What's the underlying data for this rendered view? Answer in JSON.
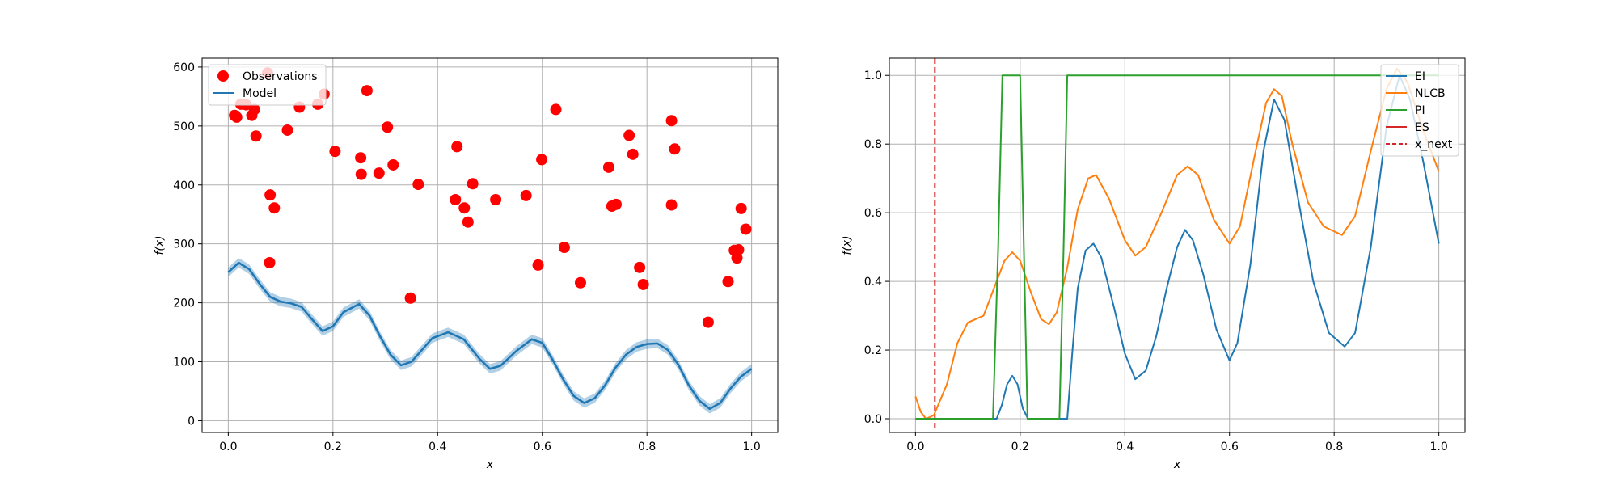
{
  "chart_data": [
    {
      "type": "scatter",
      "xlabel": "x",
      "ylabel": "f(x)",
      "xlim": [
        -0.05,
        1.05
      ],
      "ylim": [
        -20,
        615
      ],
      "xticks": [
        "0.0",
        "0.2",
        "0.4",
        "0.6",
        "0.8",
        "1.0"
      ],
      "yticks": [
        "0",
        "100",
        "200",
        "300",
        "400",
        "500",
        "600"
      ],
      "grid": true,
      "legend": {
        "position": "top-left",
        "entries": [
          "Observations",
          "Model"
        ]
      },
      "series": [
        {
          "name": "Observations",
          "kind": "scatter",
          "color": "#ff0000",
          "points": [
            [
              0.012,
              518
            ],
            [
              0.016,
              515
            ],
            [
              0.024,
              537
            ],
            [
              0.034,
              536
            ],
            [
              0.045,
              518
            ],
            [
              0.05,
              528
            ],
            [
              0.053,
              483
            ],
            [
              0.075,
              590
            ],
            [
              0.08,
              383
            ],
            [
              0.079,
              268
            ],
            [
              0.088,
              361
            ],
            [
              0.113,
              493
            ],
            [
              0.136,
              532
            ],
            [
              0.171,
              537
            ],
            [
              0.183,
              554
            ],
            [
              0.204,
              457
            ],
            [
              0.253,
              446
            ],
            [
              0.254,
              418
            ],
            [
              0.265,
              560
            ],
            [
              0.288,
              420
            ],
            [
              0.304,
              498
            ],
            [
              0.315,
              434
            ],
            [
              0.348,
              208
            ],
            [
              0.363,
              401
            ],
            [
              0.434,
              375
            ],
            [
              0.437,
              465
            ],
            [
              0.451,
              361
            ],
            [
              0.458,
              337
            ],
            [
              0.467,
              402
            ],
            [
              0.511,
              375
            ],
            [
              0.569,
              382
            ],
            [
              0.592,
              264
            ],
            [
              0.599,
              443
            ],
            [
              0.626,
              528
            ],
            [
              0.642,
              294
            ],
            [
              0.673,
              234
            ],
            [
              0.727,
              430
            ],
            [
              0.733,
              364
            ],
            [
              0.741,
              367
            ],
            [
              0.766,
              484
            ],
            [
              0.773,
              452
            ],
            [
              0.786,
              260
            ],
            [
              0.793,
              231
            ],
            [
              0.847,
              509
            ],
            [
              0.847,
              366
            ],
            [
              0.853,
              461
            ],
            [
              0.917,
              167
            ],
            [
              0.955,
              236
            ],
            [
              0.967,
              289
            ],
            [
              0.972,
              276
            ],
            [
              0.975,
              290
            ],
            [
              0.98,
              360
            ],
            [
              0.989,
              325
            ]
          ]
        },
        {
          "name": "Model",
          "kind": "line",
          "color": "#1f77b4",
          "band_halfwidth": 8,
          "points": [
            [
              0.0,
              252
            ],
            [
              0.02,
              268
            ],
            [
              0.04,
              257
            ],
            [
              0.06,
              232
            ],
            [
              0.08,
              210
            ],
            [
              0.1,
              202
            ],
            [
              0.12,
              199
            ],
            [
              0.14,
              193
            ],
            [
              0.16,
              172
            ],
            [
              0.18,
              152
            ],
            [
              0.2,
              160
            ],
            [
              0.22,
              184
            ],
            [
              0.25,
              198
            ],
            [
              0.27,
              178
            ],
            [
              0.29,
              143
            ],
            [
              0.31,
              112
            ],
            [
              0.33,
              94
            ],
            [
              0.35,
              100
            ],
            [
              0.37,
              120
            ],
            [
              0.39,
              140
            ],
            [
              0.42,
              150
            ],
            [
              0.45,
              138
            ],
            [
              0.48,
              105
            ],
            [
              0.5,
              88
            ],
            [
              0.52,
              93
            ],
            [
              0.55,
              118
            ],
            [
              0.58,
              138
            ],
            [
              0.6,
              132
            ],
            [
              0.62,
              103
            ],
            [
              0.64,
              70
            ],
            [
              0.66,
              42
            ],
            [
              0.68,
              30
            ],
            [
              0.7,
              38
            ],
            [
              0.72,
              60
            ],
            [
              0.74,
              90
            ],
            [
              0.76,
              112
            ],
            [
              0.78,
              125
            ],
            [
              0.8,
              130
            ],
            [
              0.82,
              131
            ],
            [
              0.84,
              120
            ],
            [
              0.86,
              95
            ],
            [
              0.88,
              60
            ],
            [
              0.9,
              34
            ],
            [
              0.92,
              20
            ],
            [
              0.94,
              30
            ],
            [
              0.96,
              55
            ],
            [
              0.98,
              75
            ],
            [
              1.0,
              88
            ]
          ]
        }
      ]
    },
    {
      "type": "line",
      "xlabel": "x",
      "ylabel": "f(x)",
      "xlim": [
        -0.05,
        1.05
      ],
      "ylim": [
        -0.04,
        1.05
      ],
      "xticks": [
        "0.0",
        "0.2",
        "0.4",
        "0.6",
        "0.8",
        "1.0"
      ],
      "yticks": [
        "0.0",
        "0.2",
        "0.4",
        "0.6",
        "0.8",
        "1.0"
      ],
      "grid": true,
      "legend": {
        "position": "top-right",
        "entries": [
          "EI",
          "NLCB",
          "PI",
          "ES",
          "x_next"
        ]
      },
      "vline": {
        "x": 0.037,
        "color": "#d62728",
        "name": "x_next"
      },
      "series": [
        {
          "name": "EI",
          "color": "#1f77b4",
          "points": [
            [
              0.0,
              0.0
            ],
            [
              0.155,
              0.0
            ],
            [
              0.165,
              0.04
            ],
            [
              0.175,
              0.1
            ],
            [
              0.185,
              0.125
            ],
            [
              0.195,
              0.1
            ],
            [
              0.205,
              0.03
            ],
            [
              0.215,
              0.0
            ],
            [
              0.29,
              0.0
            ],
            [
              0.3,
              0.2
            ],
            [
              0.31,
              0.38
            ],
            [
              0.325,
              0.49
            ],
            [
              0.34,
              0.51
            ],
            [
              0.355,
              0.47
            ],
            [
              0.38,
              0.32
            ],
            [
              0.4,
              0.19
            ],
            [
              0.42,
              0.115
            ],
            [
              0.44,
              0.14
            ],
            [
              0.46,
              0.24
            ],
            [
              0.48,
              0.38
            ],
            [
              0.5,
              0.5
            ],
            [
              0.515,
              0.55
            ],
            [
              0.53,
              0.52
            ],
            [
              0.55,
              0.42
            ],
            [
              0.575,
              0.26
            ],
            [
              0.6,
              0.17
            ],
            [
              0.615,
              0.22
            ],
            [
              0.64,
              0.45
            ],
            [
              0.665,
              0.78
            ],
            [
              0.685,
              0.93
            ],
            [
              0.705,
              0.87
            ],
            [
              0.73,
              0.65
            ],
            [
              0.76,
              0.4
            ],
            [
              0.79,
              0.25
            ],
            [
              0.82,
              0.21
            ],
            [
              0.84,
              0.25
            ],
            [
              0.87,
              0.5
            ],
            [
              0.9,
              0.85
            ],
            [
              0.925,
              1.0
            ],
            [
              0.945,
              0.93
            ],
            [
              0.97,
              0.75
            ],
            [
              1.0,
              0.51
            ]
          ]
        },
        {
          "name": "NLCB",
          "color": "#ff7f0e",
          "points": [
            [
              0.0,
              0.065
            ],
            [
              0.01,
              0.02
            ],
            [
              0.02,
              0.0
            ],
            [
              0.035,
              0.01
            ],
            [
              0.06,
              0.1
            ],
            [
              0.08,
              0.22
            ],
            [
              0.1,
              0.28
            ],
            [
              0.13,
              0.3
            ],
            [
              0.15,
              0.38
            ],
            [
              0.17,
              0.46
            ],
            [
              0.185,
              0.485
            ],
            [
              0.2,
              0.46
            ],
            [
              0.22,
              0.37
            ],
            [
              0.24,
              0.29
            ],
            [
              0.255,
              0.275
            ],
            [
              0.27,
              0.31
            ],
            [
              0.29,
              0.44
            ],
            [
              0.31,
              0.61
            ],
            [
              0.33,
              0.7
            ],
            [
              0.345,
              0.71
            ],
            [
              0.37,
              0.64
            ],
            [
              0.4,
              0.52
            ],
            [
              0.42,
              0.475
            ],
            [
              0.44,
              0.5
            ],
            [
              0.47,
              0.6
            ],
            [
              0.5,
              0.71
            ],
            [
              0.52,
              0.735
            ],
            [
              0.54,
              0.71
            ],
            [
              0.57,
              0.58
            ],
            [
              0.6,
              0.51
            ],
            [
              0.62,
              0.56
            ],
            [
              0.65,
              0.78
            ],
            [
              0.67,
              0.92
            ],
            [
              0.685,
              0.96
            ],
            [
              0.7,
              0.94
            ],
            [
              0.72,
              0.8
            ],
            [
              0.75,
              0.63
            ],
            [
              0.78,
              0.56
            ],
            [
              0.815,
              0.535
            ],
            [
              0.84,
              0.59
            ],
            [
              0.87,
              0.78
            ],
            [
              0.9,
              0.96
            ],
            [
              0.92,
              1.02
            ],
            [
              0.94,
              0.98
            ],
            [
              0.97,
              0.84
            ],
            [
              1.0,
              0.72
            ]
          ]
        },
        {
          "name": "PI",
          "color": "#2ca02c",
          "points": [
            [
              0.0,
              0.0
            ],
            [
              0.148,
              0.0
            ],
            [
              0.158,
              0.5
            ],
            [
              0.166,
              1.0
            ],
            [
              0.2,
              1.0
            ],
            [
              0.207,
              0.5
            ],
            [
              0.214,
              0.0
            ],
            [
              0.275,
              0.0
            ],
            [
              0.283,
              0.5
            ],
            [
              0.29,
              1.0
            ],
            [
              1.0,
              1.0
            ]
          ]
        },
        {
          "name": "ES",
          "color": "#d62728",
          "points": []
        }
      ]
    }
  ]
}
